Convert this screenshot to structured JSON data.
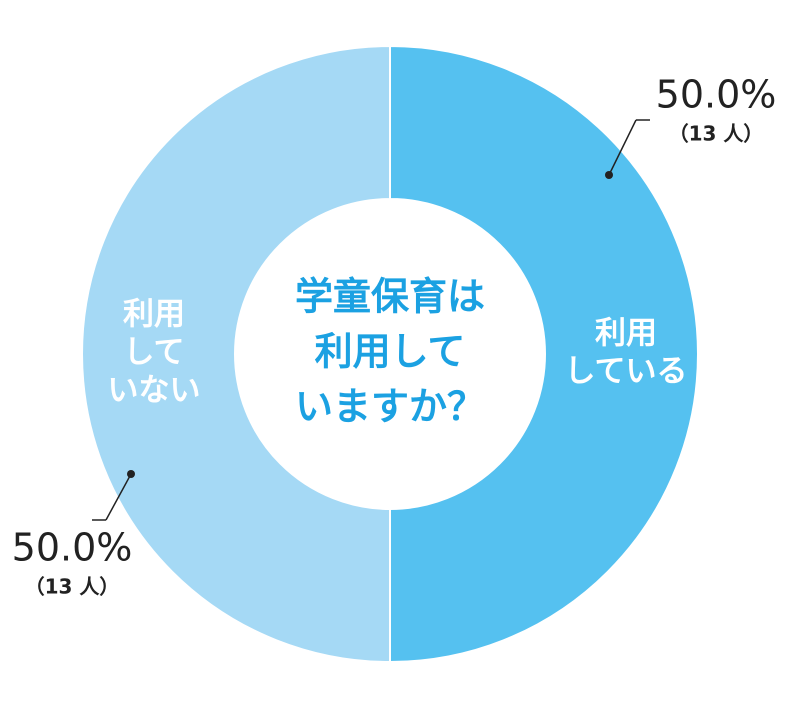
{
  "chart_data": {
    "type": "donut",
    "title": [
      "学童保育は",
      "利用して",
      "いますか？"
    ],
    "title_color": "#1ba1e2",
    "categories": [
      [
        "利用",
        "している"
      ],
      [
        "利用",
        "して",
        "いない"
      ]
    ],
    "values": [
      50.0,
      50.0
    ],
    "value_labels": [
      "50.0%",
      "50.0%"
    ],
    "count_labels": [
      "（13 人）",
      "（13 人）"
    ],
    "colors": [
      "#55c1f0",
      "#a5d9f5"
    ]
  }
}
